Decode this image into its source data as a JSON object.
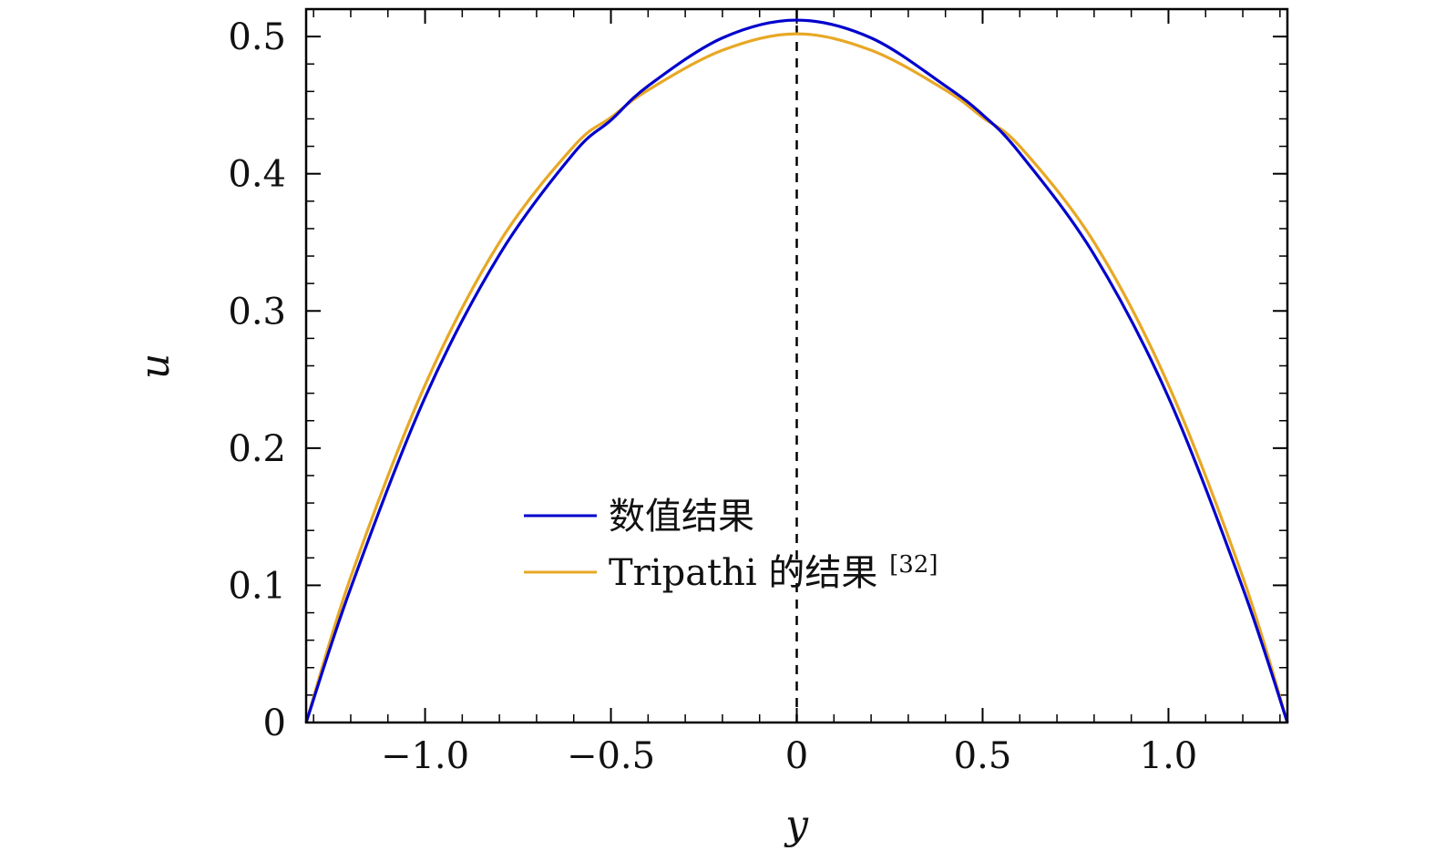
{
  "chart_data": {
    "type": "line",
    "xlabel": "y",
    "ylabel": "u",
    "xlim": [
      -1.32,
      1.32
    ],
    "ylim": [
      0,
      0.52
    ],
    "x_ticks": [
      {
        "value": -1.0,
        "label": "−1.0"
      },
      {
        "value": -0.5,
        "label": "−0.5"
      },
      {
        "value": 0,
        "label": "0"
      },
      {
        "value": 0.5,
        "label": "0.5"
      },
      {
        "value": 1.0,
        "label": "1.0"
      }
    ],
    "y_ticks": [
      {
        "value": 0,
        "label": "0"
      },
      {
        "value": 0.1,
        "label": "0.1"
      },
      {
        "value": 0.2,
        "label": "0.2"
      },
      {
        "value": 0.3,
        "label": "0.3"
      },
      {
        "value": 0.4,
        "label": "0.4"
      },
      {
        "value": 0.5,
        "label": "0.5"
      }
    ],
    "reference_line": {
      "x": 0,
      "style": "dashed",
      "color": "#000000"
    },
    "legend": {
      "position": "bottom-center"
    },
    "series": [
      {
        "name": "数值结果",
        "color": "#0000cc",
        "x": [
          -1.32,
          -1.2,
          -1.0,
          -0.8,
          -0.6,
          -0.5,
          -0.4,
          -0.2,
          0,
          0.2,
          0.4,
          0.5,
          0.6,
          0.8,
          1.0,
          1.2,
          1.32
        ],
        "y": [
          0,
          0.098,
          0.237,
          0.341,
          0.415,
          0.439,
          0.464,
          0.499,
          0.512,
          0.499,
          0.464,
          0.443,
          0.415,
          0.341,
          0.237,
          0.098,
          0
        ]
      },
      {
        "name": "Tripathi 的结果",
        "name_suffix": "[32]",
        "color": "#e8a825",
        "x": [
          -1.32,
          -1.2,
          -1.0,
          -0.8,
          -0.6,
          -0.5,
          -0.4,
          -0.2,
          0,
          0.2,
          0.4,
          0.5,
          0.6,
          0.8,
          1.0,
          1.2,
          1.32
        ],
        "y": [
          0,
          0.106,
          0.246,
          0.35,
          0.42,
          0.441,
          0.461,
          0.49,
          0.502,
          0.49,
          0.461,
          0.441,
          0.42,
          0.35,
          0.246,
          0.106,
          0
        ]
      }
    ]
  }
}
